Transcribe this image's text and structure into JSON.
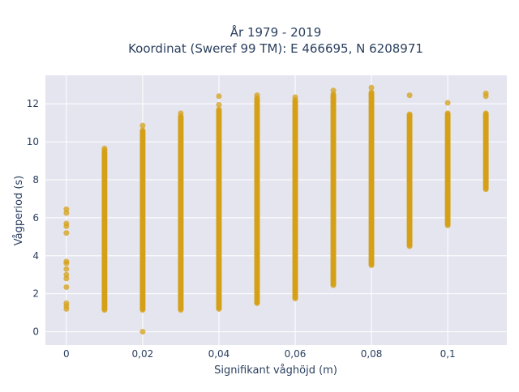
{
  "chart_data": {
    "type": "scatter",
    "title": "År 1979 - 2019",
    "subtitle": "Koordinat (Sweref 99 TM): E 466695, N 6208971",
    "xlabel": "Signifikant våghöjd (m)",
    "ylabel": "Vågperiod (s)",
    "xlim": [
      -0.0055,
      0.1155
    ],
    "ylim": [
      -0.7,
      13.5
    ],
    "x_ticks": [
      0,
      0.02,
      0.04,
      0.06,
      0.08,
      0.1
    ],
    "x_tick_labels": [
      "0",
      "0,02",
      "0,04",
      "0,06",
      "0,08",
      "0,1"
    ],
    "y_ticks": [
      0,
      2,
      4,
      6,
      8,
      10,
      12
    ],
    "y_tick_labels": [
      "0",
      "2",
      "4",
      "6",
      "8",
      "10",
      "12"
    ],
    "grid": true,
    "legend": false,
    "marker_color": "#d4a017",
    "plot_background": "#e5e5f0",
    "columns": [
      {
        "x": 0,
        "range": null,
        "points": [
          1.2,
          1.35,
          1.5,
          2.35,
          2.8,
          3.0,
          3.3,
          3.6,
          3.7,
          5.2,
          5.55,
          5.7,
          6.25,
          6.45
        ]
      },
      {
        "x": 0.01,
        "range": [
          1.15,
          9.45
        ],
        "points": [
          9.55,
          9.65
        ]
      },
      {
        "x": 0.02,
        "range": [
          1.15,
          10.6
        ],
        "points": [
          0.0,
          10.85
        ]
      },
      {
        "x": 0.03,
        "range": [
          1.15,
          11.35
        ],
        "points": [
          11.5
        ]
      },
      {
        "x": 0.04,
        "range": [
          1.2,
          11.7
        ],
        "points": [
          11.95,
          12.4
        ]
      },
      {
        "x": 0.05,
        "range": [
          1.5,
          12.3
        ],
        "points": [
          12.45
        ]
      },
      {
        "x": 0.06,
        "range": [
          1.75,
          12.2
        ],
        "points": [
          12.35
        ]
      },
      {
        "x": 0.07,
        "range": [
          2.5,
          12.5
        ],
        "points": [
          2.45,
          12.7
        ]
      },
      {
        "x": 0.08,
        "range": [
          3.5,
          12.6
        ],
        "points": [
          12.85
        ]
      },
      {
        "x": 0.09,
        "range": [
          4.5,
          11.45
        ],
        "points": [
          12.45
        ]
      },
      {
        "x": 0.1,
        "range": [
          5.6,
          11.5
        ],
        "points": [
          12.05
        ]
      },
      {
        "x": 0.11,
        "range": [
          7.5,
          11.5
        ],
        "points": [
          12.4,
          12.55
        ]
      }
    ]
  }
}
